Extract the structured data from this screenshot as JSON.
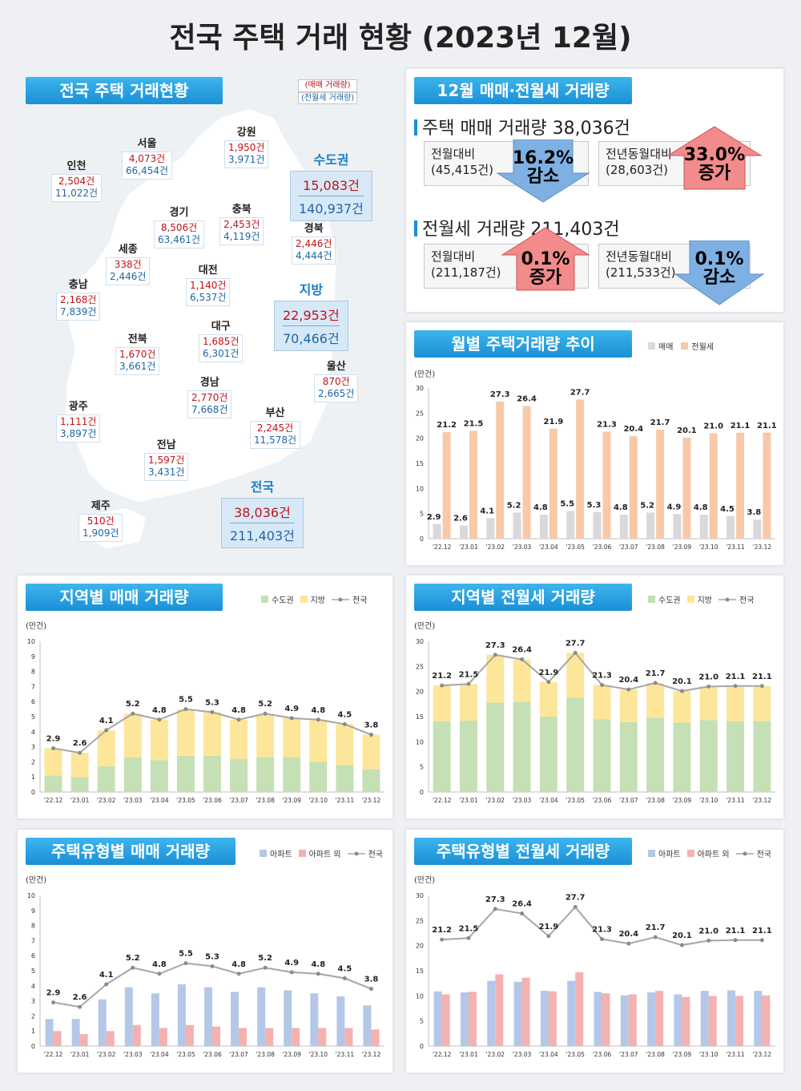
{
  "title": "전국 주택 거래 현황 (2023년 12월)",
  "map_panel": {
    "header": "전국 주택 거래현황",
    "legend_sale": "(매매 거래량)",
    "legend_rent": "(전월세 거래량)",
    "regions": [
      {
        "name": "인천",
        "sale": "2,504건",
        "rent": "11,022건"
      },
      {
        "name": "서울",
        "sale": "4,073건",
        "rent": "66,454건"
      },
      {
        "name": "강원",
        "sale": "1,950건",
        "rent": "3,971건"
      },
      {
        "name": "경기",
        "sale": "8,506건",
        "rent": "63,461건"
      },
      {
        "name": "충북",
        "sale": "2,453건",
        "rent": "4,119건"
      },
      {
        "name": "경북",
        "sale": "2,446건",
        "rent": "4,444건"
      },
      {
        "name": "세종",
        "sale": "338건",
        "rent": "2,446건"
      },
      {
        "name": "대전",
        "sale": "1,140건",
        "rent": "6,537건"
      },
      {
        "name": "충남",
        "sale": "2,168건",
        "rent": "7,839건"
      },
      {
        "name": "대구",
        "sale": "1,685건",
        "rent": "6,301건"
      },
      {
        "name": "전북",
        "sale": "1,670건",
        "rent": "3,661건"
      },
      {
        "name": "울산",
        "sale": "870건",
        "rent": "2,665건"
      },
      {
        "name": "경남",
        "sale": "2,770건",
        "rent": "7,668건"
      },
      {
        "name": "광주",
        "sale": "1,111건",
        "rent": "3,897건"
      },
      {
        "name": "부산",
        "sale": "2,245건",
        "rent": "11,578건"
      },
      {
        "name": "전남",
        "sale": "1,597건",
        "rent": "3,431건"
      },
      {
        "name": "제주",
        "sale": "510건",
        "rent": "1,909건"
      }
    ],
    "capital": {
      "name": "수도권",
      "sale": "15,083건",
      "rent": "140,937건"
    },
    "local": {
      "name": "지방",
      "sale": "22,953건",
      "rent": "70,466건"
    },
    "nation": {
      "name": "전국",
      "sale": "38,036건",
      "rent": "211,403건"
    }
  },
  "summary_panel": {
    "header": "12월 매매·전월세 거래량",
    "sale_title": "주택 매매 거래량 38,036건",
    "sale_mom_label": "전월대비",
    "sale_mom_base": "(45,415건)",
    "sale_mom_value": "16.2%",
    "sale_mom_dir": "감소",
    "sale_yoy_label": "전년동월대비",
    "sale_yoy_base": "(28,603건)",
    "sale_yoy_value": "33.0%",
    "sale_yoy_dir": "증가",
    "rent_title": "전월세 거래량 211,403건",
    "rent_mom_label": "전월대비",
    "rent_mom_base": "(211,187건)",
    "rent_mom_value": "0.1%",
    "rent_mom_dir": "증가",
    "rent_yoy_label": "전년동월대비",
    "rent_yoy_base": "(211,533건)",
    "rent_yoy_value": "0.1%",
    "rent_yoy_dir": "감소"
  },
  "colors": {
    "sale_gray": "#d9d9d9",
    "rent_peach": "#f8c9a8",
    "capital_green": "#c5e0b4",
    "local_yellow": "#fde69a",
    "apt_blue": "#b4c7e7",
    "nonapt_pink": "#f4b1b1",
    "line_gray": "#a6a6a6"
  },
  "chart_data": [
    {
      "type": "bar",
      "title": "월별 주택거래량 추이",
      "unit": "(만건)",
      "categories": [
        "'22.12",
        "'23.01",
        "'23.02",
        "'23.03",
        "'23.04",
        "'23.05",
        "'23.06",
        "'23.07",
        "'23.08",
        "'23.09",
        "'23.10",
        "'23.11",
        "'23.12"
      ],
      "series": [
        {
          "name": "매매",
          "values": [
            2.9,
            2.6,
            4.1,
            5.2,
            4.8,
            5.5,
            5.3,
            4.8,
            5.2,
            4.9,
            4.8,
            4.5,
            3.8
          ]
        },
        {
          "name": "전월세",
          "values": [
            21.2,
            21.5,
            27.3,
            26.4,
            21.9,
            27.7,
            21.3,
            20.4,
            21.7,
            20.1,
            21.0,
            21.1,
            21.1
          ]
        }
      ],
      "ylim": [
        0,
        30
      ],
      "yticks": [
        0,
        5,
        10,
        15,
        20,
        25,
        30
      ]
    },
    {
      "type": "bar",
      "title": "지역별 매매 거래량",
      "unit": "(만건)",
      "stacked": true,
      "categories": [
        "'22.12",
        "'23.01",
        "'23.02",
        "'23.03",
        "'23.04",
        "'23.05",
        "'23.06",
        "'23.07",
        "'23.08",
        "'23.09",
        "'23.10",
        "'23.11",
        "'23.12"
      ],
      "series": [
        {
          "name": "수도권",
          "values": [
            1.1,
            1.0,
            1.7,
            2.3,
            2.1,
            2.4,
            2.4,
            2.2,
            2.3,
            2.3,
            2.0,
            1.8,
            1.5
          ]
        },
        {
          "name": "지방",
          "values": [
            1.8,
            1.6,
            2.4,
            2.9,
            2.7,
            3.1,
            2.9,
            2.6,
            2.9,
            2.6,
            2.8,
            2.7,
            2.3
          ]
        },
        {
          "name": "전국",
          "type": "line",
          "values": [
            2.9,
            2.6,
            4.1,
            5.2,
            4.8,
            5.5,
            5.3,
            4.8,
            5.2,
            4.9,
            4.8,
            4.5,
            3.8
          ]
        }
      ],
      "ylim": [
        0,
        10
      ],
      "yticks": [
        0,
        1,
        2,
        3,
        4,
        5,
        6,
        7,
        8,
        9,
        10
      ]
    },
    {
      "type": "bar",
      "title": "지역별 전월세 거래량",
      "unit": "(만건)",
      "stacked": true,
      "categories": [
        "'22.12",
        "'23.01",
        "'23.02",
        "'23.03",
        "'23.04",
        "'23.05",
        "'23.06",
        "'23.07",
        "'23.08",
        "'23.09",
        "'23.10",
        "'23.11",
        "'23.12"
      ],
      "series": [
        {
          "name": "수도권",
          "values": [
            14.1,
            14.2,
            17.8,
            18.0,
            15.0,
            18.8,
            14.5,
            13.9,
            14.8,
            13.8,
            14.3,
            14.1,
            14.1
          ]
        },
        {
          "name": "지방",
          "values": [
            7.1,
            7.3,
            9.5,
            8.4,
            6.9,
            8.9,
            6.8,
            6.5,
            6.9,
            6.3,
            6.7,
            7.0,
            7.0
          ]
        },
        {
          "name": "전국",
          "type": "line",
          "values": [
            21.2,
            21.5,
            27.3,
            26.4,
            21.9,
            27.7,
            21.3,
            20.4,
            21.7,
            20.1,
            21.0,
            21.1,
            21.1
          ]
        }
      ],
      "ylim": [
        0,
        30
      ],
      "yticks": [
        0,
        5,
        10,
        15,
        20,
        25,
        30
      ]
    },
    {
      "type": "bar",
      "title": "주택유형별 매매 거래량",
      "unit": "(만건)",
      "categories": [
        "'22.12",
        "'23.01",
        "'23.02",
        "'23.03",
        "'23.04",
        "'23.05",
        "'23.06",
        "'23.07",
        "'23.08",
        "'23.09",
        "'23.10",
        "'23.11",
        "'23.12"
      ],
      "series": [
        {
          "name": "아파트",
          "values": [
            1.8,
            1.8,
            3.1,
            3.9,
            3.5,
            4.1,
            3.9,
            3.6,
            3.9,
            3.7,
            3.5,
            3.3,
            2.7
          ]
        },
        {
          "name": "아파트 외",
          "values": [
            1.0,
            0.8,
            1.0,
            1.4,
            1.2,
            1.4,
            1.3,
            1.2,
            1.2,
            1.2,
            1.2,
            1.2,
            1.1
          ]
        },
        {
          "name": "전국",
          "type": "line",
          "values": [
            2.9,
            2.6,
            4.1,
            5.2,
            4.8,
            5.5,
            5.3,
            4.8,
            5.2,
            4.9,
            4.8,
            4.5,
            3.8
          ]
        }
      ],
      "ylim": [
        0,
        10
      ],
      "yticks": [
        0,
        1,
        2,
        3,
        4,
        5,
        6,
        7,
        8,
        9,
        10
      ]
    },
    {
      "type": "bar",
      "title": "주택유형별 전월세 거래량",
      "unit": "(만건)",
      "categories": [
        "'22.12",
        "'23.01",
        "'23.02",
        "'23.03",
        "'23.04",
        "'23.05",
        "'23.06",
        "'23.07",
        "'23.08",
        "'23.09",
        "'23.10",
        "'23.11",
        "'23.12"
      ],
      "series": [
        {
          "name": "아파트",
          "values": [
            10.9,
            10.7,
            13.0,
            12.8,
            11.0,
            13.0,
            10.8,
            10.1,
            10.7,
            10.3,
            11.0,
            11.1,
            11.0
          ]
        },
        {
          "name": "아파트 외",
          "values": [
            10.3,
            10.8,
            14.3,
            13.6,
            10.9,
            14.7,
            10.5,
            10.3,
            11.0,
            9.8,
            10.0,
            10.0,
            10.1
          ]
        },
        {
          "name": "전국",
          "type": "line",
          "values": [
            21.2,
            21.5,
            27.3,
            26.4,
            21.9,
            27.7,
            21.3,
            20.4,
            21.7,
            20.1,
            21.0,
            21.1,
            21.1
          ]
        }
      ],
      "ylim": [
        0,
        30
      ],
      "yticks": [
        0,
        5,
        10,
        15,
        20,
        25,
        30
      ]
    }
  ]
}
